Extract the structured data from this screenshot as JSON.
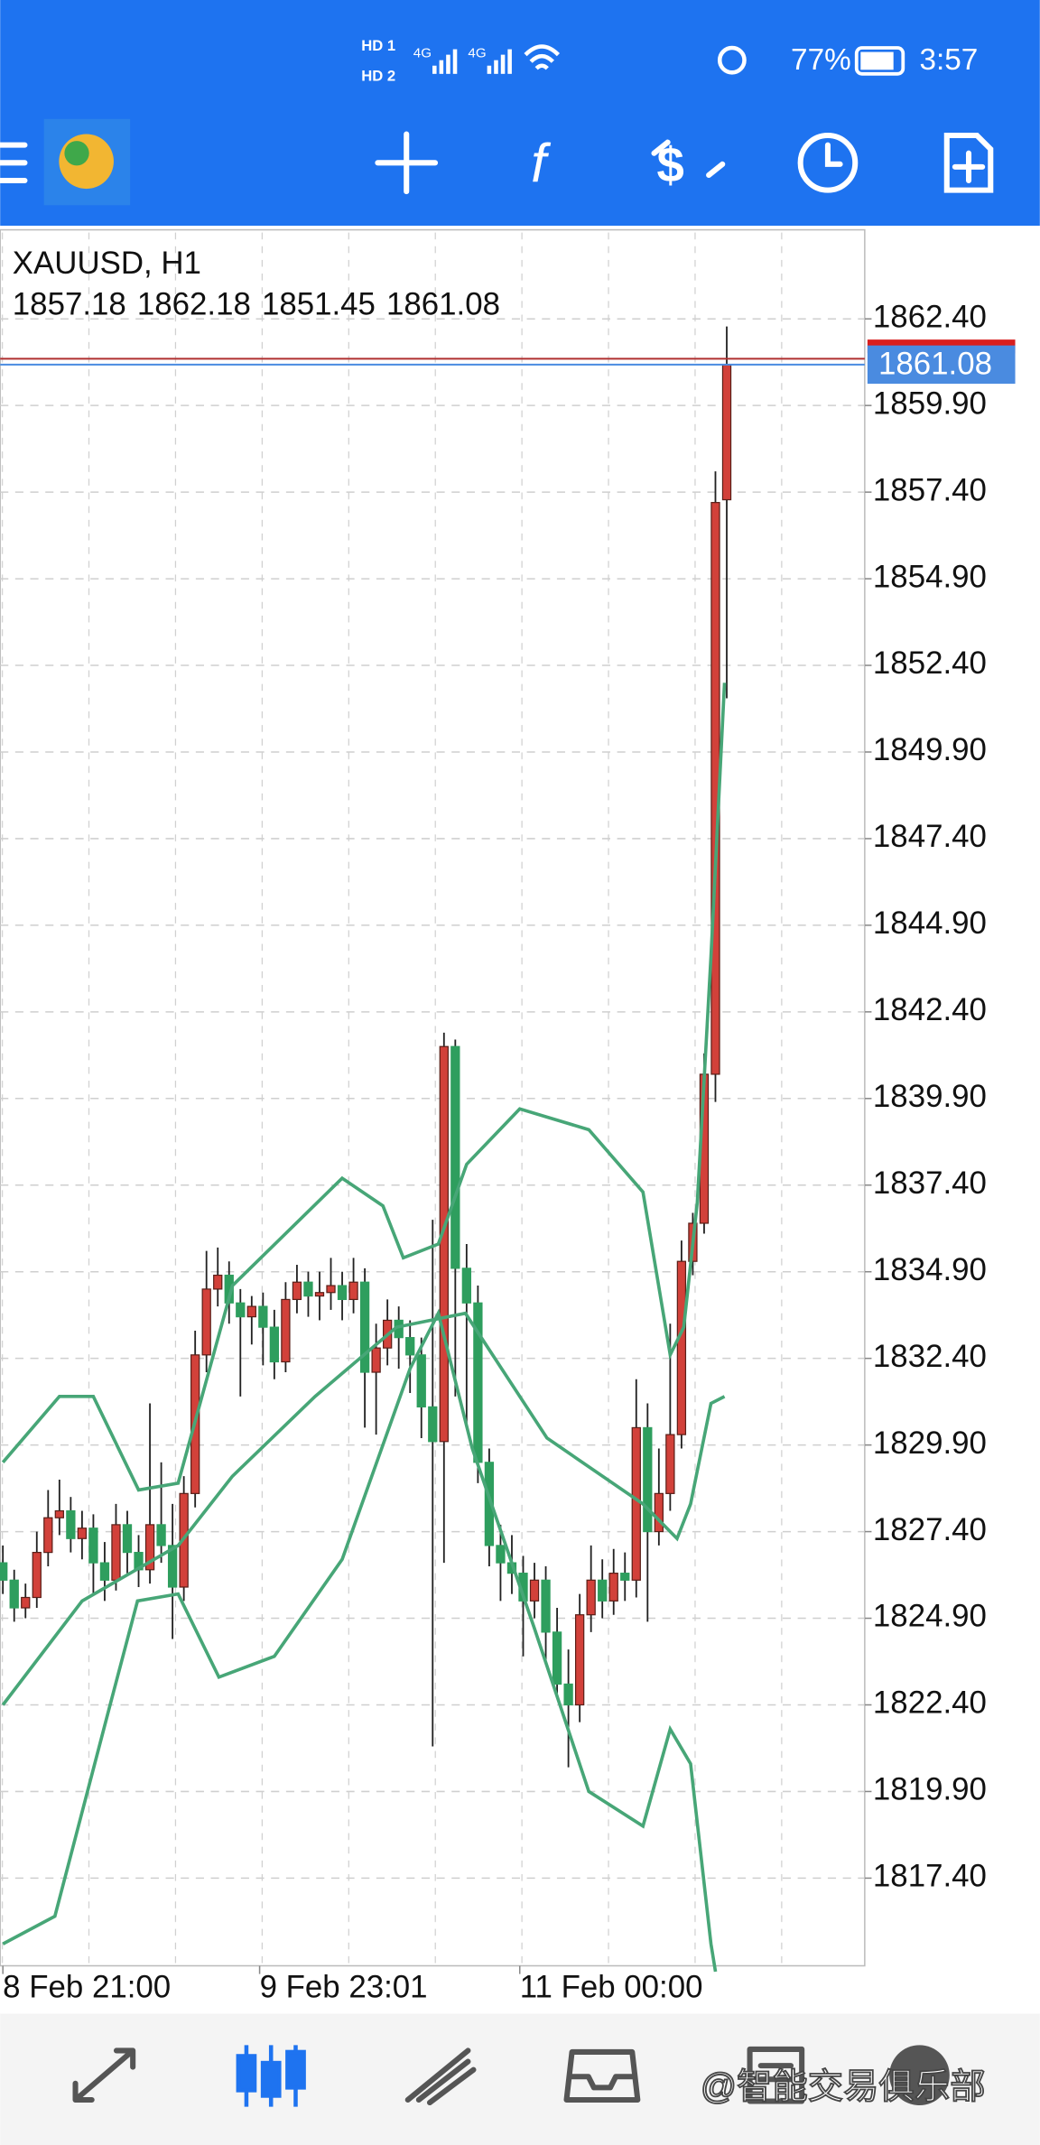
{
  "status_bar": {
    "time": "3:57",
    "battery": "77%",
    "sim1": "HD 1",
    "sim2": "HD 2",
    "network1": "4G",
    "network2": "4G"
  },
  "watermark": "@智能交易俱乐部",
  "chart_data": {
    "type": "candlestick",
    "title": "XAUUSD, H1",
    "up_color": "#d2413a",
    "down_color": "#2e9e5e",
    "band_color": "#47a677",
    "grid": true,
    "candles": [
      [
        1826.5,
        1827.0,
        1825.6,
        1826.0
      ],
      [
        1826.0,
        1826.3,
        1824.8,
        1825.2
      ],
      [
        1825.2,
        1825.9,
        1824.9,
        1825.5
      ],
      [
        1825.5,
        1827.4,
        1825.2,
        1826.8
      ],
      [
        1826.8,
        1828.6,
        1826.4,
        1827.8
      ],
      [
        1827.8,
        1828.9,
        1827.3,
        1828.0
      ],
      [
        1828.0,
        1828.4,
        1826.8,
        1827.2
      ],
      [
        1827.2,
        1828.0,
        1826.6,
        1827.5
      ],
      [
        1827.5,
        1827.9,
        1825.6,
        1826.5
      ],
      [
        1826.5,
        1827.1,
        1825.4,
        1826.0
      ],
      [
        1826.0,
        1828.2,
        1825.7,
        1827.6
      ],
      [
        1827.6,
        1828.0,
        1826.2,
        1826.8
      ],
      [
        1826.8,
        1827.3,
        1825.8,
        1826.3
      ],
      [
        1826.3,
        1831.1,
        1825.9,
        1827.6
      ],
      [
        1827.6,
        1829.4,
        1826.5,
        1827.0
      ],
      [
        1827.0,
        1828.2,
        1824.3,
        1825.8
      ],
      [
        1825.8,
        1829.0,
        1825.4,
        1828.5
      ],
      [
        1828.5,
        1833.2,
        1828.1,
        1832.5
      ],
      [
        1832.5,
        1835.5,
        1832.0,
        1834.4
      ],
      [
        1834.4,
        1835.6,
        1833.9,
        1834.8
      ],
      [
        1834.8,
        1835.2,
        1833.4,
        1834.0
      ],
      [
        1834.0,
        1834.4,
        1831.3,
        1833.6
      ],
      [
        1833.6,
        1834.2,
        1832.8,
        1833.9
      ],
      [
        1833.9,
        1834.3,
        1832.2,
        1833.3
      ],
      [
        1833.3,
        1833.8,
        1831.8,
        1832.3
      ],
      [
        1832.3,
        1834.6,
        1832.0,
        1834.1
      ],
      [
        1834.1,
        1835.1,
        1833.7,
        1834.6
      ],
      [
        1834.6,
        1834.9,
        1833.6,
        1834.2
      ],
      [
        1834.2,
        1834.9,
        1833.5,
        1834.3
      ],
      [
        1834.3,
        1835.3,
        1833.8,
        1834.5
      ],
      [
        1834.5,
        1834.9,
        1833.5,
        1834.1
      ],
      [
        1834.1,
        1835.3,
        1833.7,
        1834.6
      ],
      [
        1834.6,
        1835.0,
        1830.4,
        1832.0
      ],
      [
        1832.0,
        1833.4,
        1830.2,
        1832.7
      ],
      [
        1832.7,
        1834.1,
        1832.2,
        1833.5
      ],
      [
        1833.5,
        1833.9,
        1832.1,
        1833.0
      ],
      [
        1833.0,
        1833.5,
        1831.4,
        1832.5
      ],
      [
        1832.5,
        1833.0,
        1830.1,
        1831.0
      ],
      [
        1831.0,
        1836.4,
        1821.2,
        1830.0
      ],
      [
        1830.0,
        1841.8,
        1826.5,
        1841.4
      ],
      [
        1841.4,
        1841.6,
        1831.3,
        1835.0
      ],
      [
        1835.0,
        1835.7,
        1830.5,
        1834.0
      ],
      [
        1834.0,
        1834.5,
        1828.8,
        1829.4
      ],
      [
        1829.4,
        1829.8,
        1826.4,
        1827.0
      ],
      [
        1827.0,
        1827.6,
        1825.4,
        1826.5
      ],
      [
        1826.5,
        1827.3,
        1825.6,
        1826.2
      ],
      [
        1826.2,
        1826.7,
        1823.8,
        1825.4
      ],
      [
        1825.4,
        1826.5,
        1824.9,
        1826.0
      ],
      [
        1826.0,
        1826.4,
        1823.6,
        1824.5
      ],
      [
        1824.5,
        1825.2,
        1822.7,
        1823.0
      ],
      [
        1823.0,
        1824.0,
        1820.6,
        1822.4
      ],
      [
        1822.4,
        1825.6,
        1821.9,
        1825.0
      ],
      [
        1825.0,
        1827.0,
        1824.5,
        1826.0
      ],
      [
        1826.0,
        1826.6,
        1824.9,
        1825.4
      ],
      [
        1825.4,
        1826.9,
        1825.0,
        1826.2
      ],
      [
        1826.2,
        1826.8,
        1825.4,
        1826.0
      ],
      [
        1826.0,
        1831.8,
        1825.5,
        1830.4
      ],
      [
        1830.4,
        1831.1,
        1824.8,
        1827.4
      ],
      [
        1827.4,
        1829.8,
        1827.0,
        1828.5
      ],
      [
        1828.5,
        1833.4,
        1828.0,
        1830.2
      ],
      [
        1830.2,
        1835.8,
        1829.8,
        1835.2
      ],
      [
        1835.2,
        1836.6,
        1834.8,
        1836.3
      ],
      [
        1836.3,
        1841.2,
        1836.0,
        1840.6
      ],
      [
        1840.6,
        1858.0,
        1839.8,
        1857.1
      ],
      [
        1857.18,
        1862.18,
        1851.45,
        1861.08
      ]
    ],
    "bands": [
      {
        "x": [
          0,
          5,
          8,
          12,
          15.5,
          20.3,
          30,
          33.6,
          35.4,
          38.5,
          41,
          45.7,
          51.8,
          56.6,
          59,
          60.2,
          61.4,
          62.6,
          63.8
        ],
        "values": [
          1829.4,
          1831.3,
          1831.3,
          1828.6,
          1828.8,
          1834.5,
          1837.6,
          1836.8,
          1835.3,
          1835.7,
          1838.0,
          1839.6,
          1839.0,
          1837.2,
          1832.5,
          1833.3,
          1836.9,
          1844.0,
          1851.9
        ]
      },
      {
        "x": [
          0,
          7,
          15.5,
          20.3,
          27.6,
          34.8,
          40.9,
          48.1,
          56.6,
          59.6,
          60.8,
          62.6,
          63.8
        ],
        "values": [
          1822.4,
          1825.4,
          1827.0,
          1829.0,
          1831.3,
          1833.3,
          1833.7,
          1830.1,
          1828.2,
          1827.2,
          1828.2,
          1831.1,
          1831.3
        ]
      },
      {
        "x": [
          0,
          4.6,
          9.4,
          11.9,
          15.5,
          19.1,
          24,
          30,
          36,
          38.5,
          41.5,
          47,
          51.8,
          56.6,
          59,
          60.8,
          62.6,
          63
        ],
        "values": [
          1815.5,
          1816.3,
          1822.3,
          1825.4,
          1825.6,
          1823.2,
          1823.8,
          1826.6,
          1832.1,
          1833.7,
          1829.8,
          1824.6,
          1819.9,
          1818.9,
          1821.7,
          1820.7,
          1815.5,
          1814.7
        ]
      }
    ],
    "bid": 1861.08,
    "ask": 1861.25,
    "xlim": [
      -0.24,
      76.2
    ],
    "ylim": [
      1814.87,
      1864.97
    ],
    "xticks": [
      {
        "value": 0,
        "label": "8 Feb 21:00"
      },
      {
        "value": 22.7,
        "label": "9 Feb 23:01"
      },
      {
        "value": 45.7,
        "label": "11 Feb 00:00"
      }
    ],
    "yticks": [
      {
        "value": 1817.4,
        "label": "1817.40"
      },
      {
        "value": 1819.9,
        "label": "1819.90"
      },
      {
        "value": 1822.4,
        "label": "1822.40"
      },
      {
        "value": 1824.9,
        "label": "1824.90"
      },
      {
        "value": 1827.4,
        "label": "1827.40"
      },
      {
        "value": 1829.9,
        "label": "1829.90"
      },
      {
        "value": 1832.4,
        "label": "1832.40"
      },
      {
        "value": 1834.9,
        "label": "1834.90"
      },
      {
        "value": 1837.4,
        "label": "1837.40"
      },
      {
        "value": 1839.9,
        "label": "1839.90"
      },
      {
        "value": 1842.4,
        "label": "1842.40"
      },
      {
        "value": 1844.9,
        "label": "1844.90"
      },
      {
        "value": 1847.4,
        "label": "1847.40"
      },
      {
        "value": 1849.9,
        "label": "1849.90"
      },
      {
        "value": 1852.4,
        "label": "1852.40"
      },
      {
        "value": 1854.9,
        "label": "1854.90"
      },
      {
        "value": 1857.4,
        "label": "1857.40"
      },
      {
        "value": 1859.9,
        "label": "1859.90"
      },
      {
        "value": 1862.4,
        "label": "1862.40"
      }
    ]
  }
}
